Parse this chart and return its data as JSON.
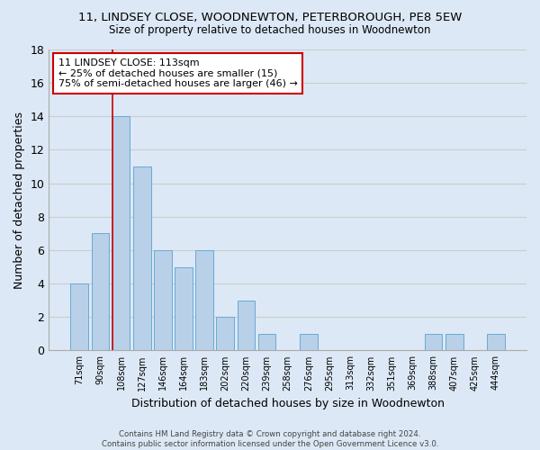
{
  "title1": "11, LINDSEY CLOSE, WOODNEWTON, PETERBOROUGH, PE8 5EW",
  "title2": "Size of property relative to detached houses in Woodnewton",
  "xlabel": "Distribution of detached houses by size in Woodnewton",
  "ylabel": "Number of detached properties",
  "categories": [
    "71sqm",
    "90sqm",
    "108sqm",
    "127sqm",
    "146sqm",
    "164sqm",
    "183sqm",
    "202sqm",
    "220sqm",
    "239sqm",
    "258sqm",
    "276sqm",
    "295sqm",
    "313sqm",
    "332sqm",
    "351sqm",
    "369sqm",
    "388sqm",
    "407sqm",
    "425sqm",
    "444sqm"
  ],
  "values": [
    4,
    7,
    14,
    11,
    6,
    5,
    6,
    2,
    3,
    1,
    0,
    1,
    0,
    0,
    0,
    0,
    0,
    1,
    1,
    0,
    1
  ],
  "bar_color": "#b8d0e8",
  "bar_edgecolor": "#6aaad4",
  "grid_color": "#cccccc",
  "bg_color": "#dce8f5",
  "plot_bg_color": "#dce8f5",
  "annotation_line1": "11 LINDSEY CLOSE: 113sqm",
  "annotation_line2": "← 25% of detached houses are smaller (15)",
  "annotation_line3": "75% of semi-detached houses are larger (46) →",
  "annotation_box_color": "#ffffff",
  "annotation_border_color": "#cc0000",
  "vline_x_index": 2,
  "vline_color": "#cc0000",
  "ylim": [
    0,
    18
  ],
  "yticks": [
    0,
    2,
    4,
    6,
    8,
    10,
    12,
    14,
    16,
    18
  ],
  "footer1": "Contains HM Land Registry data © Crown copyright and database right 2024.",
  "footer2": "Contains public sector information licensed under the Open Government Licence v3.0."
}
